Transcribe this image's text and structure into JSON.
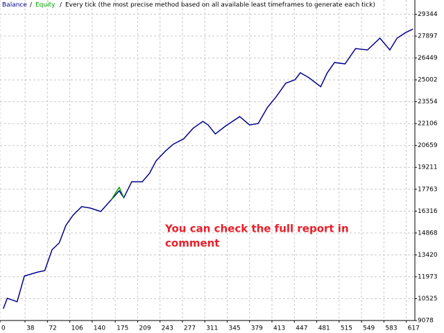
{
  "chart_data": {
    "type": "line",
    "subtitle": "Every tick (the most precise method based on all available least timeframes to generate each tick)",
    "annotation": [
      "You can check the full report in",
      "comment"
    ],
    "x": [
      5,
      11,
      26,
      37,
      58,
      68,
      79,
      90,
      100,
      111,
      124,
      137,
      153,
      169,
      181,
      188,
      200,
      216,
      227,
      237,
      251,
      263,
      279,
      293,
      308,
      316,
      327,
      342,
      364,
      379,
      392,
      406,
      419,
      434,
      448,
      456,
      469,
      487,
      497,
      508,
      524,
      540,
      558,
      577,
      592,
      603,
      616,
      627
    ],
    "series": [
      {
        "name": "Balance",
        "color": "#00008b",
        "values": [
          9860,
          10550,
          10320,
          12020,
          12290,
          12380,
          13760,
          14220,
          15370,
          16050,
          16610,
          16520,
          16290,
          17070,
          17660,
          17200,
          18260,
          18260,
          18810,
          19640,
          20280,
          20740,
          21100,
          21790,
          22250,
          22020,
          21420,
          21930,
          22570,
          22020,
          22110,
          23170,
          23860,
          24780,
          25010,
          25470,
          25150,
          24550,
          25470,
          26150,
          26060,
          27070,
          26980,
          27760,
          26980,
          27760,
          28130,
          28360
        ]
      },
      {
        "name": "Equity",
        "color": "#00a000",
        "values": [
          null,
          null,
          null,
          null,
          null,
          null,
          null,
          null,
          null,
          null,
          null,
          null,
          null,
          17070,
          17890,
          17200,
          null,
          null,
          null,
          null,
          null,
          null,
          null,
          null,
          null,
          null,
          null,
          null,
          null,
          null,
          null,
          null,
          null,
          null,
          null,
          null,
          null,
          null,
          null,
          null,
          null,
          null,
          null,
          null,
          null,
          null,
          null,
          null
        ]
      }
    ],
    "xlim": [
      0,
      630
    ],
    "xticks": [
      0,
      38,
      72,
      106,
      140,
      175,
      209,
      243,
      277,
      311,
      345,
      379,
      413,
      447,
      481,
      515,
      549,
      583,
      617
    ],
    "ylim": [
      9078,
      30285
    ],
    "yticks": [
      9078,
      10525,
      11973,
      13420,
      14868,
      16316,
      17763,
      19211,
      20659,
      22106,
      23554,
      25002,
      26449,
      27897,
      29344
    ],
    "grid": true
  }
}
